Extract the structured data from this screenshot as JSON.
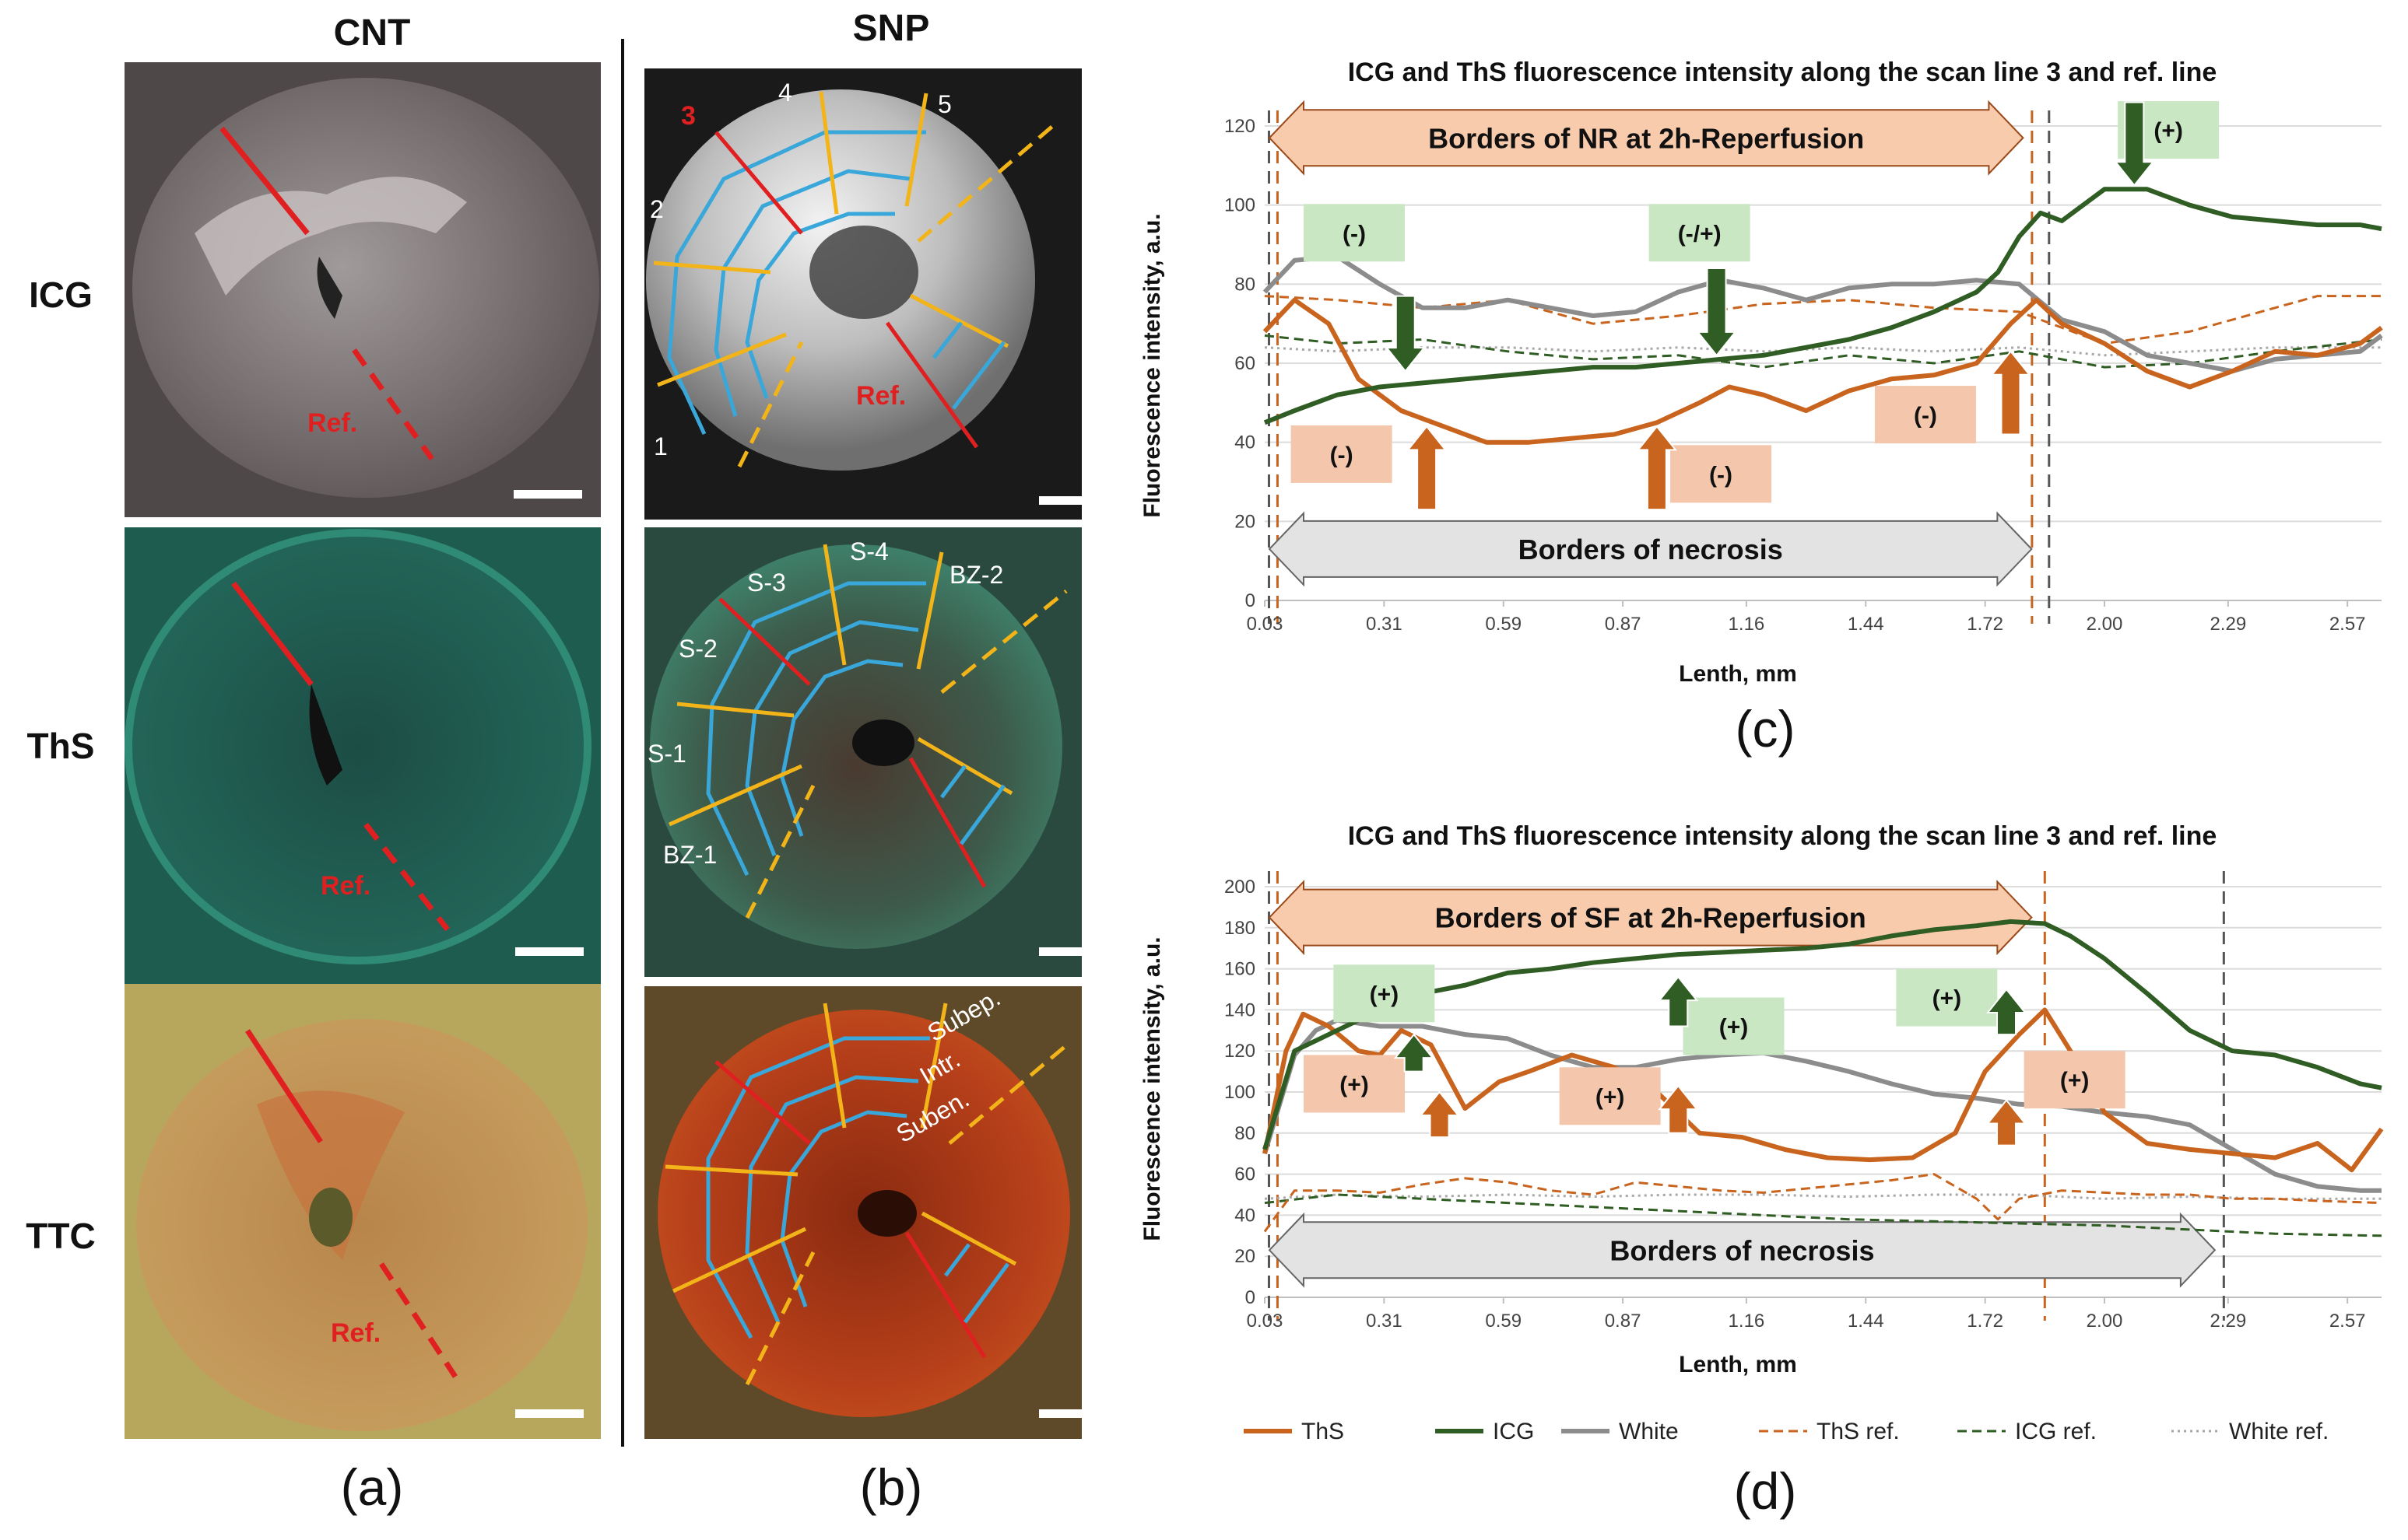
{
  "columns": {
    "cnt": "CNT",
    "snp": "SNP"
  },
  "rows": {
    "icg": "ICG",
    "ths": "ThS",
    "ttc": "TTC"
  },
  "panel_labels": {
    "a": "(a)",
    "b": "(b)",
    "c": "(c)",
    "d": "(d)"
  },
  "image_labels": {
    "ref": "Ref.",
    "scan_numbers": [
      "1",
      "2",
      "3",
      "4",
      "5"
    ],
    "segments": [
      "S-1",
      "S-2",
      "S-3",
      "S-4",
      "BZ-1",
      "BZ-2"
    ],
    "layers": [
      "Subep.",
      "Intr.",
      "Suben."
    ]
  },
  "colors": {
    "ths": "#c8641e",
    "icg": "#2f5d23",
    "white": "#8c8c8c",
    "scan_red": "#e02020",
    "scan_yellow": "#f2b418",
    "scan_blue": "#39a7d9",
    "band_fill": "#f8cbad",
    "band_grey": "#e3e3e3",
    "ann_green": "#c9e7c2",
    "ann_orange": "#f4c7ad"
  },
  "chart_data": [
    {
      "id": "c",
      "type": "line",
      "title": "ICG and ThS fluorescence intensity along the scan line 3 and ref. line",
      "xlabel": "Lenth, mm",
      "ylabel": "Fluorescence intensity, a.u.",
      "x_range": [
        0.03,
        2.65
      ],
      "x_ticks": [
        "0.03",
        "0.31",
        "0.59",
        "0.87",
        "1.16",
        "1.44",
        "1.72",
        "2.00",
        "2.29",
        "2.57"
      ],
      "y_range": [
        0,
        120
      ],
      "y_ticks": [
        "0",
        "20",
        "40",
        "60",
        "80",
        "100",
        "120"
      ],
      "bands": [
        {
          "label": "Borders of NR at 2h-Reperfusion",
          "x_from": 0.03,
          "x_to": 1.82,
          "y": 117,
          "style": "orange"
        },
        {
          "label": "Borders of necrosis",
          "x_from": 0.03,
          "x_to": 1.84,
          "y": 13,
          "style": "grey"
        }
      ],
      "vlines": [
        {
          "x": 0.04,
          "color": "grey"
        },
        {
          "x": 0.06,
          "color": "orange"
        },
        {
          "x": 1.83,
          "color": "orange"
        },
        {
          "x": 1.87,
          "color": "grey"
        }
      ],
      "annotations": [
        {
          "text": "(+)",
          "x": 2.15,
          "y": 119,
          "color": "green"
        },
        {
          "text": "(-)",
          "x": 0.24,
          "y": 93,
          "color": "green"
        },
        {
          "text": "(-/+)",
          "x": 1.05,
          "y": 93,
          "color": "green"
        },
        {
          "text": "(-)",
          "x": 0.21,
          "y": 37,
          "color": "orange"
        },
        {
          "text": "(-)",
          "x": 1.1,
          "y": 32,
          "color": "orange"
        },
        {
          "text": "(-)",
          "x": 1.58,
          "y": 47,
          "color": "orange"
        }
      ],
      "arrows": [
        {
          "x": 2.07,
          "from": 126,
          "to": 105,
          "color": "green"
        },
        {
          "x": 0.36,
          "from": 77,
          "to": 58,
          "color": "green"
        },
        {
          "x": 1.09,
          "from": 84,
          "to": 62,
          "color": "green"
        },
        {
          "x": 0.41,
          "from": 23,
          "to": 44,
          "color": "orange"
        },
        {
          "x": 0.95,
          "from": 23,
          "to": 44,
          "color": "orange"
        },
        {
          "x": 1.78,
          "from": 42,
          "to": 63,
          "color": "orange"
        }
      ],
      "series": [
        {
          "name": "ThS",
          "style": "ths",
          "x": [
            0.03,
            0.1,
            0.18,
            0.25,
            0.35,
            0.45,
            0.55,
            0.65,
            0.75,
            0.85,
            0.95,
            1.05,
            1.12,
            1.2,
            1.3,
            1.4,
            1.5,
            1.6,
            1.7,
            1.78,
            1.84,
            1.9,
            2.0,
            2.1,
            2.2,
            2.3,
            2.4,
            2.5,
            2.6,
            2.65
          ],
          "values": [
            68,
            76,
            70,
            56,
            48,
            44,
            40,
            40,
            41,
            42,
            45,
            50,
            54,
            52,
            48,
            53,
            56,
            57,
            60,
            70,
            76,
            70,
            65,
            58,
            54,
            58,
            63,
            62,
            65,
            69
          ]
        },
        {
          "name": "ICG",
          "style": "icg",
          "x": [
            0.03,
            0.1,
            0.2,
            0.3,
            0.4,
            0.5,
            0.6,
            0.7,
            0.8,
            0.9,
            1.0,
            1.1,
            1.2,
            1.3,
            1.4,
            1.5,
            1.6,
            1.7,
            1.75,
            1.8,
            1.85,
            1.9,
            2.0,
            2.1,
            2.2,
            2.3,
            2.4,
            2.5,
            2.6,
            2.65
          ],
          "values": [
            45,
            48,
            52,
            54,
            55,
            56,
            57,
            58,
            59,
            59,
            60,
            61,
            62,
            64,
            66,
            69,
            73,
            78,
            83,
            92,
            98,
            96,
            104,
            104,
            100,
            97,
            96,
            95,
            95,
            94
          ]
        },
        {
          "name": "White",
          "style": "white",
          "x": [
            0.03,
            0.1,
            0.2,
            0.3,
            0.4,
            0.5,
            0.6,
            0.7,
            0.8,
            0.9,
            1.0,
            1.1,
            1.2,
            1.3,
            1.4,
            1.5,
            1.6,
            1.7,
            1.8,
            1.9,
            2.0,
            2.1,
            2.2,
            2.3,
            2.4,
            2.5,
            2.6,
            2.65
          ],
          "values": [
            78,
            86,
            87,
            80,
            74,
            74,
            76,
            74,
            72,
            73,
            78,
            81,
            79,
            76,
            79,
            80,
            80,
            81,
            80,
            71,
            68,
            62,
            60,
            58,
            61,
            62,
            63,
            67
          ]
        },
        {
          "name": "ThS ref.",
          "style": "ths-ref",
          "x": [
            0.03,
            0.2,
            0.4,
            0.6,
            0.8,
            1.0,
            1.2,
            1.4,
            1.6,
            1.8,
            2.0,
            2.2,
            2.4,
            2.5,
            2.65
          ],
          "values": [
            77,
            76,
            74,
            76,
            70,
            72,
            75,
            76,
            74,
            73,
            65,
            68,
            74,
            77,
            77
          ]
        },
        {
          "name": "ICG ref.",
          "style": "icg-ref",
          "x": [
            0.03,
            0.2,
            0.4,
            0.6,
            0.8,
            1.0,
            1.2,
            1.4,
            1.6,
            1.8,
            2.0,
            2.2,
            2.4,
            2.65
          ],
          "values": [
            67,
            65,
            66,
            63,
            61,
            62,
            59,
            62,
            60,
            63,
            59,
            60,
            63,
            66
          ]
        },
        {
          "name": "White ref.",
          "style": "white-ref",
          "x": [
            0.03,
            0.2,
            0.4,
            0.6,
            0.8,
            1.0,
            1.2,
            1.4,
            1.6,
            1.8,
            2.0,
            2.2,
            2.4,
            2.65
          ],
          "values": [
            64,
            63,
            64,
            64,
            63,
            64,
            63,
            64,
            63,
            64,
            62,
            63,
            64,
            64
          ]
        }
      ]
    },
    {
      "id": "d",
      "type": "line",
      "title": "ICG and ThS fluorescence intensity along the scan line 3 and ref. line",
      "xlabel": "Lenth, mm",
      "ylabel": "Fluorescence intensity, a.u.",
      "x_range": [
        0.03,
        2.65
      ],
      "x_ticks": [
        "0.03",
        "0.31",
        "0.59",
        "0.87",
        "1.16",
        "1.44",
        "1.72",
        "2.00",
        "2.29",
        "2.57"
      ],
      "y_range": [
        0,
        200
      ],
      "y_ticks": [
        "0",
        "20",
        "40",
        "60",
        "80",
        "100",
        "120",
        "140",
        "160",
        "180",
        "200"
      ],
      "bands": [
        {
          "label": "Borders of SF at 2h-Reperfusion",
          "x_from": 0.03,
          "x_to": 1.84,
          "y": 185,
          "style": "orange"
        },
        {
          "label": "Borders of necrosis",
          "x_from": 0.03,
          "x_to": 2.27,
          "y": 23,
          "style": "grey"
        }
      ],
      "vlines": [
        {
          "x": 0.04,
          "color": "grey"
        },
        {
          "x": 0.06,
          "color": "orange"
        },
        {
          "x": 1.86,
          "color": "orange"
        },
        {
          "x": 2.28,
          "color": "grey"
        }
      ],
      "annotations": [
        {
          "text": "(+)",
          "x": 0.31,
          "y": 148,
          "color": "green"
        },
        {
          "text": "(+)",
          "x": 1.13,
          "y": 132,
          "color": "green"
        },
        {
          "text": "(+)",
          "x": 1.63,
          "y": 146,
          "color": "green"
        },
        {
          "text": "(+)",
          "x": 0.24,
          "y": 104,
          "color": "orange"
        },
        {
          "text": "(+)",
          "x": 0.84,
          "y": 98,
          "color": "orange"
        },
        {
          "text": "(+)",
          "x": 1.93,
          "y": 106,
          "color": "orange"
        }
      ],
      "arrows": [
        {
          "x": 0.38,
          "from": 110,
          "to": 128,
          "color": "green"
        },
        {
          "x": 1.0,
          "from": 132,
          "to": 156,
          "color": "green"
        },
        {
          "x": 1.77,
          "from": 128,
          "to": 150,
          "color": "green"
        },
        {
          "x": 0.44,
          "from": 78,
          "to": 100,
          "color": "orange"
        },
        {
          "x": 1.0,
          "from": 80,
          "to": 103,
          "color": "orange"
        },
        {
          "x": 1.77,
          "from": 74,
          "to": 96,
          "color": "orange"
        }
      ],
      "series": [
        {
          "name": "ThS",
          "style": "ths",
          "x": [
            0.03,
            0.08,
            0.12,
            0.18,
            0.25,
            0.3,
            0.35,
            0.42,
            0.5,
            0.58,
            0.65,
            0.75,
            0.85,
            0.95,
            1.05,
            1.15,
            1.25,
            1.35,
            1.45,
            1.55,
            1.65,
            1.72,
            1.8,
            1.86,
            1.92,
            2.0,
            2.1,
            2.2,
            2.3,
            2.4,
            2.5,
            2.58,
            2.65
          ],
          "values": [
            70,
            120,
            138,
            132,
            120,
            118,
            130,
            123,
            92,
            105,
            110,
            118,
            112,
            100,
            80,
            78,
            72,
            68,
            67,
            68,
            80,
            110,
            128,
            140,
            120,
            90,
            75,
            72,
            70,
            68,
            75,
            62,
            82
          ]
        },
        {
          "name": "ICG",
          "style": "icg",
          "x": [
            0.03,
            0.1,
            0.2,
            0.3,
            0.4,
            0.5,
            0.6,
            0.7,
            0.8,
            0.9,
            1.0,
            1.1,
            1.2,
            1.3,
            1.4,
            1.5,
            1.6,
            1.7,
            1.78,
            1.86,
            1.92,
            2.0,
            2.1,
            2.2,
            2.3,
            2.4,
            2.5,
            2.6,
            2.65
          ],
          "values": [
            72,
            120,
            130,
            140,
            148,
            152,
            158,
            160,
            163,
            165,
            167,
            168,
            169,
            170,
            172,
            176,
            179,
            181,
            183,
            182,
            176,
            165,
            148,
            130,
            120,
            118,
            112,
            104,
            102
          ]
        },
        {
          "name": "White",
          "style": "white",
          "x": [
            0.03,
            0.1,
            0.15,
            0.2,
            0.3,
            0.4,
            0.5,
            0.6,
            0.7,
            0.8,
            0.9,
            1.0,
            1.1,
            1.2,
            1.3,
            1.4,
            1.5,
            1.6,
            1.7,
            1.8,
            1.9,
            2.0,
            2.1,
            2.2,
            2.3,
            2.4,
            2.5,
            2.6,
            2.65
          ],
          "values": [
            70,
            118,
            130,
            135,
            132,
            132,
            128,
            126,
            118,
            112,
            112,
            116,
            118,
            119,
            115,
            110,
            104,
            99,
            97,
            94,
            93,
            90,
            88,
            84,
            72,
            60,
            54,
            52,
            52
          ]
        },
        {
          "name": "ThS ref.",
          "style": "ths-ref",
          "x": [
            0.03,
            0.1,
            0.2,
            0.3,
            0.4,
            0.5,
            0.6,
            0.7,
            0.8,
            0.9,
            1.0,
            1.1,
            1.2,
            1.3,
            1.4,
            1.5,
            1.6,
            1.7,
            1.75,
            1.8,
            1.9,
            2.0,
            2.1,
            2.2,
            2.3,
            2.4,
            2.5,
            2.65
          ],
          "values": [
            32,
            52,
            52,
            51,
            55,
            58,
            56,
            52,
            50,
            56,
            54,
            52,
            51,
            53,
            55,
            57,
            60,
            48,
            38,
            48,
            52,
            51,
            50,
            50,
            48,
            48,
            47,
            46
          ]
        },
        {
          "name": "ICG ref.",
          "style": "icg-ref",
          "x": [
            0.03,
            0.2,
            0.4,
            0.6,
            0.8,
            1.0,
            1.2,
            1.4,
            1.6,
            1.8,
            2.0,
            2.2,
            2.4,
            2.65
          ],
          "values": [
            46,
            50,
            48,
            46,
            44,
            42,
            40,
            38,
            37,
            36,
            35,
            33,
            31,
            30
          ]
        },
        {
          "name": "White ref.",
          "style": "white-ref",
          "x": [
            0.03,
            0.2,
            0.4,
            0.6,
            0.8,
            1.0,
            1.2,
            1.4,
            1.6,
            1.8,
            2.0,
            2.2,
            2.4,
            2.65
          ],
          "values": [
            48,
            50,
            49,
            50,
            49,
            50,
            50,
            49,
            50,
            50,
            48,
            49,
            48,
            48
          ]
        }
      ]
    }
  ],
  "legend": [
    "ThS",
    "ICG",
    "White",
    "ThS ref.",
    "ICG ref.",
    "White ref."
  ]
}
